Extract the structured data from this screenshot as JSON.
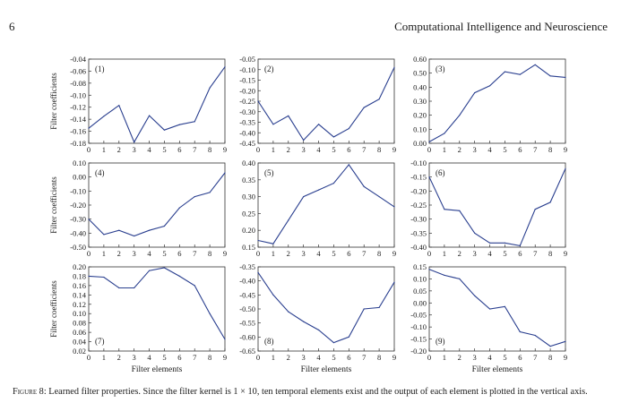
{
  "header": {
    "page_number": "6",
    "journal": "Computational Intelligence and Neuroscience"
  },
  "caption": {
    "label": "Figure 8:",
    "text": "Learned filter properties. Since the filter kernel is 1 × 10, ten temporal elements exist and the output of each element is plotted in the vertical axis."
  },
  "chart_data": [
    {
      "type": "line",
      "label": "(1)",
      "xlabel": "",
      "ylabel": "Filter coefficients",
      "x": [
        0,
        1,
        2,
        3,
        4,
        5,
        6,
        7,
        8,
        9
      ],
      "y": [
        -0.155,
        -0.135,
        -0.117,
        -0.178,
        -0.134,
        -0.158,
        -0.149,
        -0.144,
        -0.088,
        -0.053
      ],
      "xlim": [
        0,
        9
      ],
      "ylim": [
        -0.18,
        -0.04
      ],
      "yticks": [
        "-0.04",
        "-0.06",
        "-0.08",
        "-0.10",
        "-0.12",
        "-0.14",
        "-0.16",
        "-0.18"
      ],
      "xticks": [
        "0",
        "1",
        "2",
        "3",
        "4",
        "5",
        "6",
        "7",
        "8",
        "9"
      ]
    },
    {
      "type": "line",
      "label": "(2)",
      "xlabel": "",
      "ylabel": "",
      "x": [
        0,
        1,
        2,
        3,
        4,
        5,
        6,
        7,
        8,
        9
      ],
      "y": [
        -0.25,
        -0.36,
        -0.32,
        -0.435,
        -0.36,
        -0.42,
        -0.38,
        -0.28,
        -0.24,
        -0.09
      ],
      "xlim": [
        0,
        9
      ],
      "ylim": [
        -0.45,
        -0.05
      ],
      "yticks": [
        "-0.05",
        "-0.10",
        "-0.15",
        "-0.20",
        "-0.25",
        "-0.30",
        "-0.35",
        "-0.40",
        "-0.45"
      ],
      "xticks": [
        "0",
        "1",
        "2",
        "3",
        "4",
        "5",
        "6",
        "7",
        "8",
        "9"
      ]
    },
    {
      "type": "line",
      "label": "(3)",
      "xlabel": "",
      "ylabel": "",
      "x": [
        0,
        1,
        2,
        3,
        4,
        5,
        6,
        7,
        8,
        9
      ],
      "y": [
        0.01,
        0.07,
        0.2,
        0.36,
        0.41,
        0.51,
        0.49,
        0.56,
        0.48,
        0.47
      ],
      "xlim": [
        0,
        9
      ],
      "ylim": [
        0,
        0.6
      ],
      "yticks": [
        "0.60",
        "0.50",
        "0.40",
        "0.30",
        "0.20",
        "0.10",
        "0.00"
      ],
      "xticks": [
        "0",
        "1",
        "2",
        "3",
        "4",
        "5",
        "6",
        "7",
        "8",
        "9"
      ]
    },
    {
      "type": "line",
      "label": "(4)",
      "xlabel": "",
      "ylabel": "Filter coefficients",
      "x": [
        0,
        1,
        2,
        3,
        4,
        5,
        6,
        7,
        8,
        9
      ],
      "y": [
        -0.3,
        -0.41,
        -0.38,
        -0.42,
        -0.38,
        -0.35,
        -0.22,
        -0.14,
        -0.11,
        0.03
      ],
      "xlim": [
        0,
        9
      ],
      "ylim": [
        -0.5,
        0.1
      ],
      "yticks": [
        "0.10",
        "0.00",
        "-0.10",
        "-0.20",
        "-0.30",
        "-0.40",
        "-0.50"
      ],
      "xticks": [
        "0",
        "1",
        "2",
        "3",
        "4",
        "5",
        "6",
        "7",
        "8",
        "9"
      ]
    },
    {
      "type": "line",
      "label": "(5)",
      "xlabel": "",
      "ylabel": "",
      "x": [
        0,
        1,
        2,
        3,
        4,
        5,
        6,
        7,
        8,
        9
      ],
      "y": [
        0.17,
        0.16,
        0.23,
        0.3,
        0.32,
        0.34,
        0.395,
        0.33,
        0.3,
        0.27
      ],
      "xlim": [
        0,
        9
      ],
      "ylim": [
        0.15,
        0.4
      ],
      "yticks": [
        "0.40",
        "0.35",
        "0.30",
        "0.25",
        "0.20",
        "0.15"
      ],
      "xticks": [
        "0",
        "1",
        "2",
        "3",
        "4",
        "5",
        "6",
        "7",
        "8",
        "9"
      ]
    },
    {
      "type": "line",
      "label": "(6)",
      "xlabel": "",
      "ylabel": "",
      "x": [
        0,
        1,
        2,
        3,
        4,
        5,
        6,
        7,
        8,
        9
      ],
      "y": [
        -0.15,
        -0.265,
        -0.27,
        -0.35,
        -0.385,
        -0.385,
        -0.395,
        -0.265,
        -0.24,
        -0.12
      ],
      "xlim": [
        0,
        9
      ],
      "ylim": [
        -0.4,
        -0.1
      ],
      "yticks": [
        "-0.10",
        "-0.15",
        "-0.20",
        "-0.25",
        "-0.30",
        "-0.35",
        "-0.40"
      ],
      "xticks": [
        "0",
        "1",
        "2",
        "3",
        "4",
        "5",
        "6",
        "7",
        "8",
        "9"
      ]
    },
    {
      "type": "line",
      "label": "(7)",
      "xlabel": "Filter elements",
      "ylabel": "Filter coefficients",
      "x": [
        0,
        1,
        2,
        3,
        4,
        5,
        6,
        7,
        8,
        9
      ],
      "y": [
        0.18,
        0.178,
        0.155,
        0.155,
        0.192,
        0.198,
        0.18,
        0.16,
        0.1,
        0.045
      ],
      "xlim": [
        0,
        9
      ],
      "ylim": [
        0.02,
        0.2
      ],
      "yticks": [
        "0.20",
        "0.18",
        "0.16",
        "0.14",
        "0.12",
        "0.10",
        "0.08",
        "0.06",
        "0.04",
        "0.02"
      ],
      "xticks": [
        "0",
        "1",
        "2",
        "3",
        "4",
        "5",
        "6",
        "7",
        "8",
        "9"
      ]
    },
    {
      "type": "line",
      "label": "(8)",
      "xlabel": "Filter elements",
      "ylabel": "",
      "x": [
        0,
        1,
        2,
        3,
        4,
        5,
        6,
        7,
        8,
        9
      ],
      "y": [
        -0.37,
        -0.45,
        -0.51,
        -0.545,
        -0.575,
        -0.62,
        -0.6,
        -0.5,
        -0.495,
        -0.405
      ],
      "xlim": [
        0,
        9
      ],
      "ylim": [
        -0.65,
        -0.35
      ],
      "yticks": [
        "-0.35",
        "-0.40",
        "-0.45",
        "-0.50",
        "-0.55",
        "-0.60",
        "-0.65"
      ],
      "xticks": [
        "0",
        "1",
        "2",
        "3",
        "4",
        "5",
        "6",
        "7",
        "8",
        "9"
      ]
    },
    {
      "type": "line",
      "label": "(9)",
      "xlabel": "Filter elements",
      "ylabel": "",
      "x": [
        0,
        1,
        2,
        3,
        4,
        5,
        6,
        7,
        8,
        9
      ],
      "y": [
        0.14,
        0.115,
        0.1,
        0.03,
        -0.025,
        -0.015,
        -0.12,
        -0.135,
        -0.18,
        -0.16
      ],
      "xlim": [
        0,
        9
      ],
      "ylim": [
        -0.2,
        0.15
      ],
      "yticks": [
        "0.15",
        "0.10",
        "0.05",
        "0.00",
        "-0.05",
        "-0.10",
        "-0.15",
        "-0.20"
      ],
      "xticks": [
        "0",
        "1",
        "2",
        "3",
        "4",
        "5",
        "6",
        "7",
        "8",
        "9"
      ]
    }
  ]
}
